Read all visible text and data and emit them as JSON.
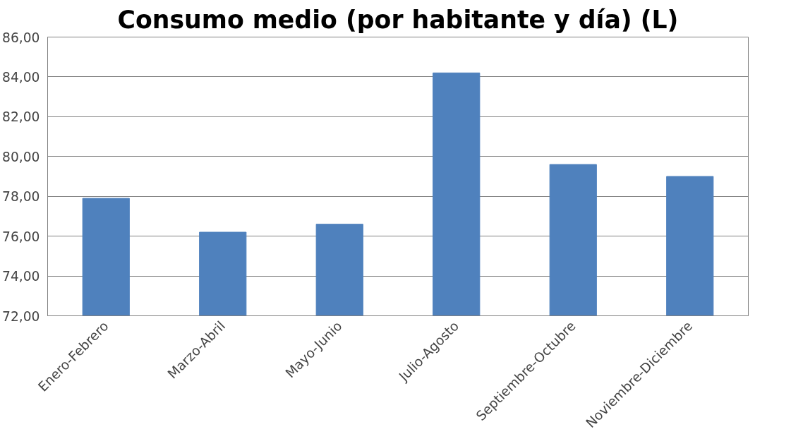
{
  "chart_data": {
    "type": "bar",
    "title": "Consumo medio (por habitante y día) (L)",
    "categories": [
      "Enero-Febrero",
      "Marzo-Abril",
      "Mayo-Junio",
      "Julio-Agosto",
      "Septiembre-Octubre",
      "Noviembre-Diciembre"
    ],
    "values": [
      77.9,
      76.2,
      76.6,
      84.2,
      79.6,
      79.0
    ],
    "color": "#4f81bd",
    "ylim": [
      72,
      86
    ],
    "yticks": [
      {
        "value": 72,
        "label": "72,00"
      },
      {
        "value": 74,
        "label": "74,00"
      },
      {
        "value": 76,
        "label": "76,00"
      },
      {
        "value": 78,
        "label": "78,00"
      },
      {
        "value": 80,
        "label": "80,00"
      },
      {
        "value": 82,
        "label": "82,00"
      },
      {
        "value": 84,
        "label": "84,00"
      },
      {
        "value": 86,
        "label": "86,00"
      }
    ],
    "grid": "y"
  }
}
